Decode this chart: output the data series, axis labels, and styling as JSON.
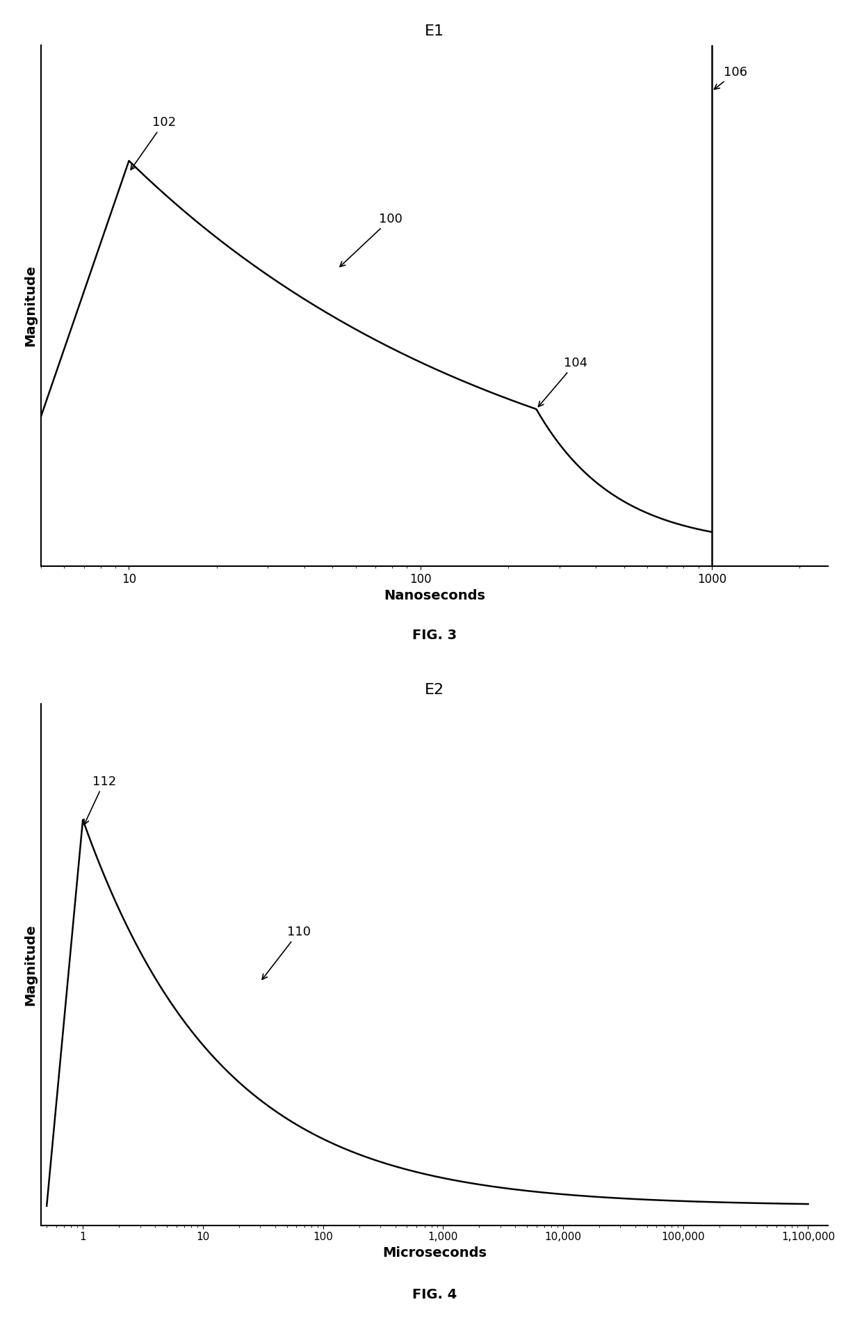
{
  "fig3": {
    "title": "E1",
    "xlabel": "Nanoseconds",
    "fig_label": "FIG. 3",
    "xlim_low": 5,
    "xlim_high": 2500,
    "xticks": [
      10,
      100,
      1000
    ],
    "xtick_labels": [
      "10",
      "100",
      "1000"
    ],
    "vline_x": 1000
  },
  "fig4": {
    "title": "E2",
    "xlabel": "Microseconds",
    "fig_label": "FIG. 4",
    "xlim_low": 0.45,
    "xlim_high": 1600000,
    "xticks": [
      1,
      10,
      100,
      1000,
      10000,
      100000,
      1100000
    ],
    "xtick_labels": [
      "1",
      "10",
      "100",
      "1,000",
      "10,000",
      "100,000",
      "1,100,000"
    ]
  },
  "background_color": "#ffffff",
  "curve_color": "#000000",
  "linewidth": 1.8,
  "fontsize_title": 16,
  "fontsize_axis_label": 14,
  "fontsize_fig_label": 14,
  "fontsize_annot": 13,
  "fontsize_ticks": 12
}
